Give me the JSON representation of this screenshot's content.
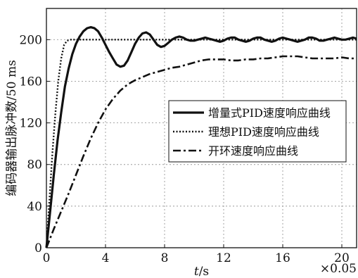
{
  "chart_data": {
    "type": "line",
    "xlabel_italic": "t",
    "xlabel_unit": "/s",
    "x_multiplier": "×0.05",
    "ylabel": "编码器输出脉冲数/50 ms",
    "xlim": [
      0,
      21
    ],
    "ylim": [
      0,
      230
    ],
    "x_ticks": [
      0,
      4,
      8,
      12,
      16,
      20
    ],
    "y_ticks": [
      0,
      40,
      80,
      120,
      160,
      200
    ],
    "grid": true,
    "legend_position": "center-right",
    "series": [
      {
        "name": "增量式PID速度响应曲线",
        "style": "solid",
        "color": "#111111",
        "x": [
          0,
          0.25,
          0.5,
          0.75,
          1,
          1.25,
          1.5,
          1.75,
          2,
          2.25,
          2.5,
          2.75,
          3,
          3.25,
          3.5,
          3.75,
          4,
          4.25,
          4.5,
          4.75,
          5,
          5.25,
          5.5,
          5.75,
          6,
          6.25,
          6.5,
          6.75,
          7,
          7.25,
          7.5,
          7.75,
          8,
          8.25,
          8.5,
          8.75,
          9,
          9.25,
          9.5,
          9.75,
          10,
          10.25,
          10.5,
          10.75,
          11,
          11.25,
          11.5,
          11.75,
          12,
          12.25,
          12.5,
          12.75,
          13,
          13.25,
          13.5,
          13.75,
          14,
          14.25,
          14.5,
          14.75,
          15,
          15.25,
          15.5,
          15.75,
          16,
          16.25,
          16.5,
          16.75,
          17,
          17.25,
          17.5,
          17.75,
          18,
          18.25,
          18.5,
          18.75,
          19,
          19.25,
          19.5,
          19.75,
          20,
          20.25,
          20.5,
          20.75,
          21
        ],
        "values": [
          0,
          35,
          70,
          103,
          130,
          155,
          172,
          186,
          196,
          203,
          208,
          211,
          212,
          211,
          208,
          202,
          195,
          188,
          182,
          176,
          174,
          175,
          180,
          188,
          196,
          202,
          206,
          207,
          205,
          200,
          195,
          193,
          194,
          197,
          200,
          202,
          203,
          202,
          200,
          199,
          199,
          200,
          201,
          202,
          201,
          200,
          199,
          198,
          199,
          201,
          202,
          202,
          200,
          199,
          198,
          199,
          201,
          202,
          202,
          200,
          199,
          198,
          199,
          201,
          202,
          201,
          200,
          199,
          198,
          199,
          200,
          202,
          202,
          201,
          199,
          199,
          200,
          201,
          202,
          201,
          200,
          200,
          201,
          202,
          201
        ]
      },
      {
        "name": "理想PID速度响应曲线",
        "style": "dotted",
        "color": "#111111",
        "x": [
          0,
          0.2,
          0.4,
          0.6,
          0.8,
          1.0,
          1.2,
          1.4,
          1.6,
          2,
          4,
          8,
          12,
          16,
          20,
          21
        ],
        "values": [
          0,
          45,
          90,
          128,
          160,
          182,
          195,
          199,
          200,
          200,
          200,
          200,
          200,
          200,
          200,
          200
        ]
      },
      {
        "name": "开环速度响应曲线",
        "style": "dashdot",
        "color": "#111111",
        "x": [
          0,
          0.5,
          1,
          1.5,
          2,
          2.5,
          3,
          3.5,
          4,
          4.5,
          5,
          5.5,
          6,
          6.5,
          7,
          7.5,
          8,
          8.5,
          9,
          9.5,
          10,
          10.5,
          11,
          11.5,
          12,
          12.5,
          13,
          13.5,
          14,
          14.5,
          15,
          15.5,
          16,
          16.5,
          17,
          17.5,
          18,
          18.5,
          19,
          19.5,
          20,
          20.5,
          21
        ],
        "values": [
          0,
          18,
          35,
          52,
          70,
          88,
          105,
          120,
          133,
          143,
          151,
          157,
          161,
          164,
          167,
          169,
          171,
          173,
          174,
          176,
          178,
          180,
          181,
          181,
          181,
          180,
          180,
          181,
          181,
          182,
          182,
          183,
          184,
          184,
          184,
          183,
          182,
          182,
          182,
          182,
          183,
          182,
          182
        ]
      }
    ]
  }
}
